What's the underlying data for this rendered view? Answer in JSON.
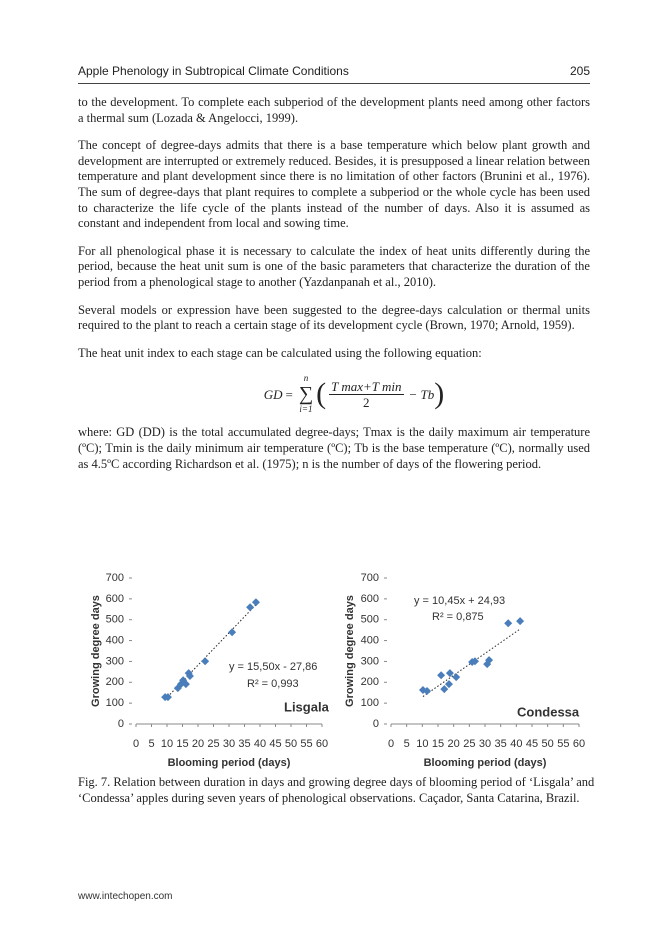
{
  "header": {
    "title": "Apple Phenology in Subtropical Climate Conditions",
    "page_number": "205"
  },
  "paragraphs": [
    "to the development. To complete each subperiod of the development plants need among other factors a thermal sum (Lozada & Angelocci, 1999).",
    "The concept of degree-days admits that there is a base temperature which below plant growth and development are interrupted or extremely reduced. Besides, it is presupposed a linear relation between temperature and plant development since there is no limitation of other factors (Brunini et al., 1976). The sum of degree-days that plant requires to complete a subperiod or the whole cycle has been used to characterize the life cycle of the plants instead of the number of days. Also it is assumed as constant and independent from local and sowing time.",
    "For all phenological phase it is necessary to calculate the index of heat units differently during the period, because the heat unit sum is one of the basic parameters that characterize the duration of the period from a phenological stage to another (Yazdanpanah et al., 2010).",
    "Several models or expression have been suggested to the degree-days calculation or thermal units required to the plant to reach a certain stage of its development cycle (Brown, 1970; Arnold, 1959).",
    "The heat unit index to each stage can be calculated using the following equation:"
  ],
  "equation": {
    "lhs": "GD",
    "equals": "=",
    "sum": "∑",
    "sum_upper": "n",
    "sum_lower": "i=1",
    "open": "(",
    "numerator": "T max+T min",
    "denominator": "2",
    "tail": "− Tb",
    "close": ")"
  },
  "after_equation": "where: GD (DD) is the total accumulated degree-days; Tmax is the daily maximum air temperature (ºC); Tmin is the daily minimum air temperature (ºC); Tb is the base temperature (ºC), normally used as 4.5ºC according Richardson et al. (1975); n is the number of days of the flowering period.",
  "chart_data": [
    {
      "type": "scatter",
      "name": "Lisgala",
      "x_label": "Blooming period (days)",
      "y_label": "Growing degree days",
      "color": "#4a7ebb",
      "x": [
        9.4,
        10.3,
        13.5,
        14.5,
        15.2,
        16.1,
        17.4,
        17,
        22.3,
        31,
        36.8,
        38.7
      ],
      "values": [
        129,
        129,
        172,
        191,
        210,
        191,
        230,
        244,
        301,
        440,
        560,
        584
      ],
      "xlim": [
        0,
        60
      ],
      "ylim": [
        0,
        700
      ],
      "xticks": [
        0,
        5,
        10,
        15,
        20,
        25,
        30,
        35,
        40,
        45,
        50,
        55,
        60
      ],
      "yticks": [
        0,
        100,
        200,
        300,
        400,
        500,
        600,
        700
      ],
      "trend": {
        "slope": 15.5,
        "intercept": -27.86,
        "label": "y = 15,50x - 27,86",
        "r2": 0.993,
        "r2_label": "R² = 0,993"
      }
    },
    {
      "type": "scatter",
      "name": "Condessa",
      "x_label": "Blooming period (days)",
      "y_label": "Growing degree days",
      "color": "#4a7ebb",
      "x": [
        10.2,
        11.5,
        16,
        17,
        18.5,
        18.8,
        20.8,
        25.9,
        26.8,
        30.7,
        31.3,
        37.4,
        41.2
      ],
      "values": [
        163,
        158,
        234,
        167,
        191,
        244,
        225,
        297,
        301,
        287,
        306,
        483,
        493
      ],
      "xlim": [
        0,
        60
      ],
      "ylim": [
        0,
        700
      ],
      "xticks": [
        0,
        5,
        10,
        15,
        20,
        25,
        30,
        35,
        40,
        45,
        50,
        55,
        60
      ],
      "yticks": [
        0,
        100,
        200,
        300,
        400,
        500,
        600,
        700
      ],
      "trend": {
        "slope": 10.45,
        "intercept": 24.93,
        "label": "y = 10,45x + 24,93",
        "r2": 0.875,
        "r2_label": "R² = 0,875"
      }
    }
  ],
  "caption": "Fig. 7. Relation between duration in days and growing degree days of blooming period of ‘Lisgala’ and ‘Condessa’ apples during seven years of phenological observations. Caçador, Santa Catarina, Brazil.",
  "footer": "www.intechopen.com"
}
